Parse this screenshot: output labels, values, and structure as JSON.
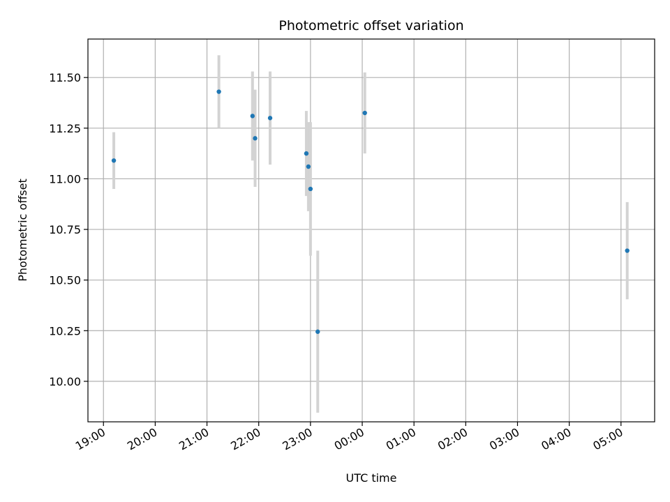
{
  "chart_data": {
    "type": "scatter",
    "title": "Photometric offset variation",
    "xlabel": "UTC time",
    "ylabel": "Photometric offset",
    "x_tick_labels": [
      "19:00",
      "20:00",
      "21:00",
      "22:00",
      "23:00",
      "00:00",
      "01:00",
      "02:00",
      "03:00",
      "04:00",
      "05:00"
    ],
    "x_ticks_hours": [
      19,
      20,
      21,
      22,
      23,
      24,
      25,
      26,
      27,
      28,
      29
    ],
    "xlim_hours": [
      18.7,
      29.65
    ],
    "y_tick_labels": [
      "10.00",
      "10.25",
      "10.50",
      "10.75",
      "11.00",
      "11.25",
      "11.50"
    ],
    "y_ticks": [
      10.0,
      10.25,
      10.5,
      10.75,
      11.0,
      11.25,
      11.5
    ],
    "ylim": [
      9.8,
      11.69
    ],
    "grid": true,
    "point_color": "#1f77b4",
    "errorbar_color": "#d3d3d3",
    "points": [
      {
        "t_hours": 19.2,
        "y": 11.09,
        "yerr": 0.14
      },
      {
        "t_hours": 21.23,
        "y": 11.43,
        "yerr": 0.18
      },
      {
        "t_hours": 21.88,
        "y": 11.31,
        "yerr": 0.22
      },
      {
        "t_hours": 21.93,
        "y": 11.2,
        "yerr": 0.24
      },
      {
        "t_hours": 22.22,
        "y": 11.3,
        "yerr": 0.23
      },
      {
        "t_hours": 22.92,
        "y": 11.125,
        "yerr": 0.21
      },
      {
        "t_hours": 22.96,
        "y": 11.06,
        "yerr": 0.22
      },
      {
        "t_hours": 23.0,
        "y": 10.95,
        "yerr": 0.33
      },
      {
        "t_hours": 23.14,
        "y": 10.245,
        "yerr": 0.4
      },
      {
        "t_hours": 24.05,
        "y": 11.325,
        "yerr": 0.2
      },
      {
        "t_hours": 29.12,
        "y": 10.645,
        "yerr": 0.24
      }
    ]
  }
}
